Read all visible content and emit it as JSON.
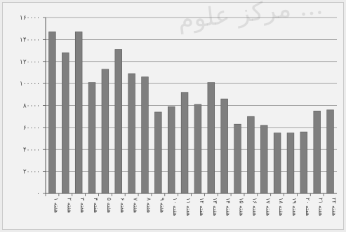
{
  "chart_data": {
    "type": "bar",
    "title": "",
    "xlabel": "",
    "ylabel": "",
    "ylim": [
      0,
      160000
    ],
    "yticks": [
      0,
      20000,
      40000,
      60000,
      80000,
      100000,
      120000,
      140000,
      160000
    ],
    "ytick_labels": [
      "۰",
      "۲۰۰۰۰",
      "۴۰۰۰۰",
      "۶۰۰۰۰",
      "۸۰۰۰۰",
      "۱۰۰۰۰۰",
      "۱۲۰۰۰۰",
      "۱۴۰۰۰۰",
      "۱۶۰۰۰۰"
    ],
    "grid": true,
    "categories": [
      "هفته ۱",
      "هفته ۲",
      "هفته ۳",
      "هفته ۴",
      "هفته ۵",
      "هفته ۶",
      "هفته ۷",
      "هفته ۸",
      "هفته ۹",
      "هفته ۱۰",
      "هفته ۱۱",
      "هفته ۱۲",
      "هفته ۱۳",
      "هفته ۱۴",
      "هفته ۱۵",
      "هفته ۱۶",
      "هفته ۱۷",
      "هفته ۱۸",
      "هفته ۱۹",
      "هفته ۲۰",
      "هفته ۲۱",
      "هفته ۲۲"
    ],
    "values": [
      147000,
      128000,
      147000,
      101000,
      113000,
      131000,
      109000,
      106000,
      74000,
      79000,
      92000,
      81000,
      101000,
      86000,
      63000,
      70000,
      62000,
      55000,
      55000,
      56000,
      75000,
      76000
    ],
    "bar_color": "#7f7f7f",
    "watermark": "مرکز علوم ..."
  }
}
